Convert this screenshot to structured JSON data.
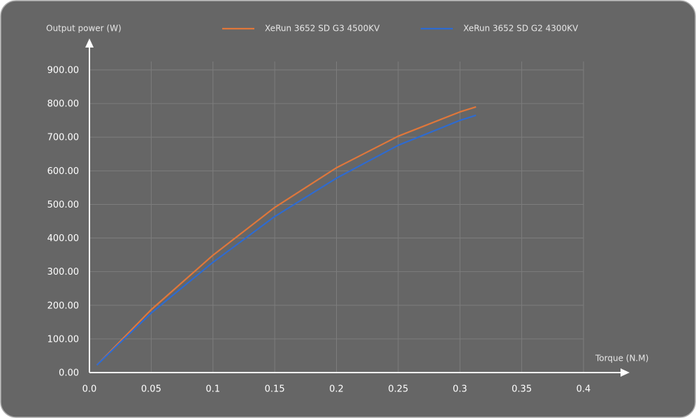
{
  "chart_data": {
    "type": "line",
    "y_label": "Output power (W)",
    "x_label": "Torque (N.M)",
    "x": [
      0.006,
      0.05,
      0.1,
      0.15,
      0.2,
      0.25,
      0.3,
      0.313
    ],
    "series": [
      {
        "name": "XeRun 3652 SD G3 4500KV",
        "color": "#e0773a",
        "values": [
          22,
          187,
          349,
          491,
          609,
          703,
          775,
          790
        ]
      },
      {
        "name": "XeRun 3652 SD G2 4300KV",
        "color": "#2e6bd0",
        "values": [
          22,
          177,
          328,
          464,
          578,
          676,
          750,
          765
        ]
      }
    ],
    "xlim": [
      0,
      0.4
    ],
    "xticks": [
      {
        "value": 0,
        "label": "0.0"
      },
      0.05,
      0.1,
      0.15,
      0.2,
      0.25,
      0.3,
      0.35,
      0.4
    ],
    "ylim": [
      0,
      900
    ],
    "yticks": [
      {
        "value": 0,
        "label": "0.00"
      },
      {
        "value": 100,
        "label": "100.00"
      },
      {
        "value": 200,
        "label": "200.00"
      },
      {
        "value": 300,
        "label": "300.00"
      },
      {
        "value": 400,
        "label": "400.00"
      },
      {
        "value": 500,
        "label": "500.00"
      },
      {
        "value": 600,
        "label": "600.00"
      },
      {
        "value": 700,
        "label": "700.00"
      },
      {
        "value": 800,
        "label": "800.00"
      },
      {
        "value": 900,
        "label": "900.00"
      }
    ],
    "grid": true
  }
}
